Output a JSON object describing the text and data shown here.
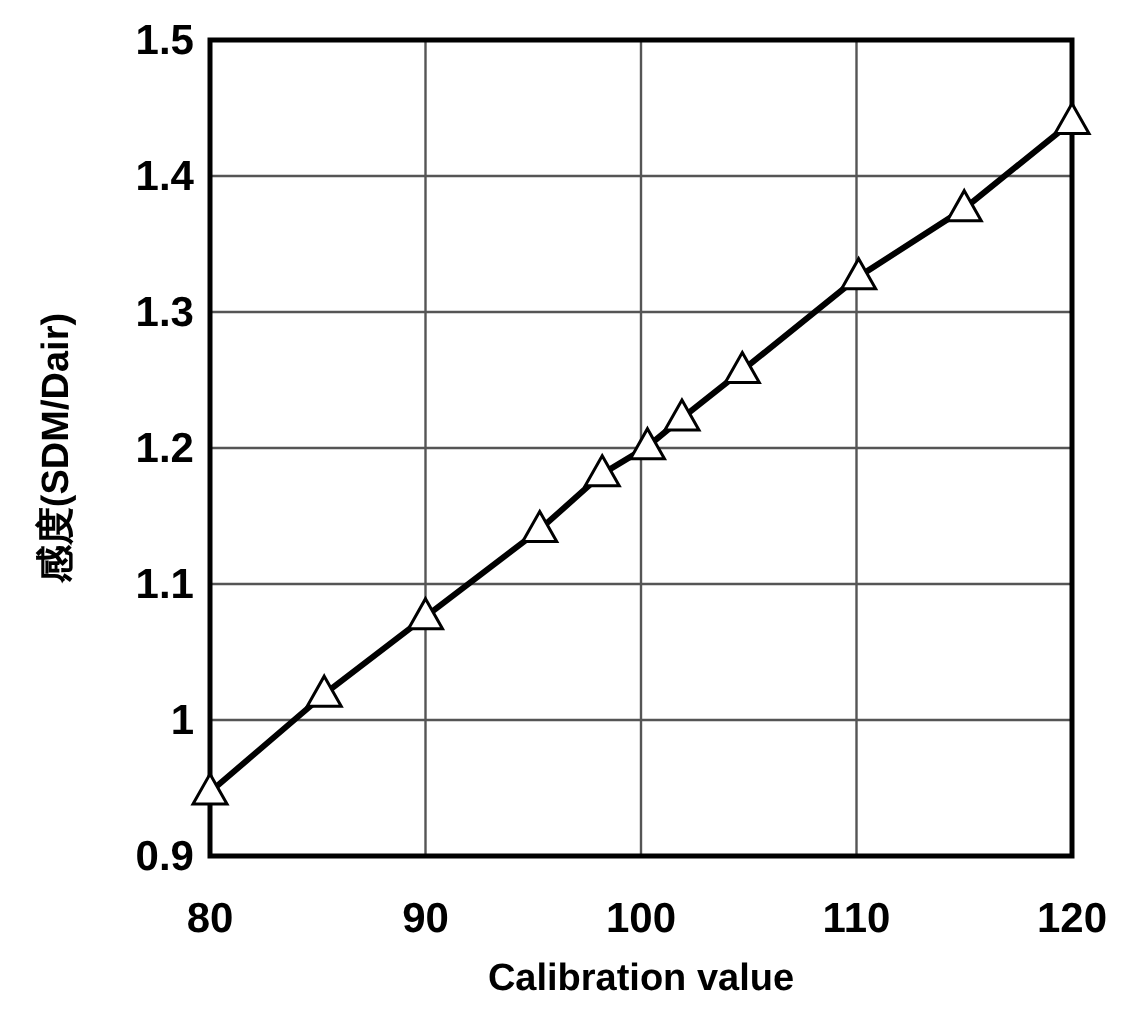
{
  "chart_data": {
    "type": "line",
    "xlabel": "Calibration value",
    "ylabel": "感度(SDM/Dair)",
    "x": [
      80,
      85.3,
      90,
      95.3,
      98.2,
      100.3,
      101.9,
      104.7,
      110.1,
      115,
      120
    ],
    "series": [
      {
        "color": "#000000",
        "values": [
          0.947,
          1.019,
          1.076,
          1.14,
          1.181,
          1.201,
          1.222,
          1.257,
          1.326,
          1.376,
          1.44
        ]
      }
    ],
    "xlim": [
      80,
      120
    ],
    "ylim": [
      0.9,
      1.5
    ],
    "xticks": [
      80,
      90,
      100,
      110,
      120
    ],
    "yticks": [
      0.9,
      1,
      1.1,
      1.2,
      1.3,
      1.4,
      1.5
    ],
    "grid": true,
    "marker": "triangle",
    "line_style": "solid"
  }
}
